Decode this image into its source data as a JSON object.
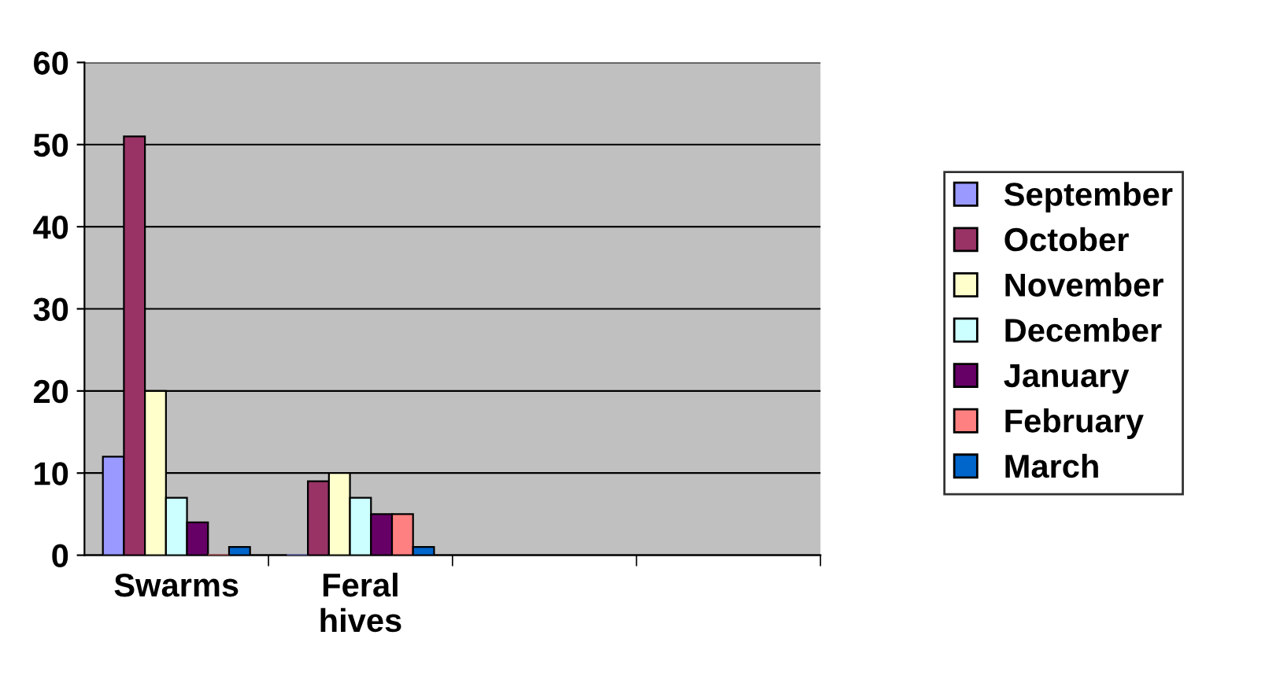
{
  "chart_data": {
    "type": "bar",
    "categories": [
      "Swarms",
      "Feral\nhives",
      null,
      null
    ],
    "series": [
      {
        "name": "September",
        "color": "#9999ff",
        "values": [
          12,
          0,
          null,
          null
        ]
      },
      {
        "name": "October",
        "color": "#993366",
        "values": [
          51,
          9,
          null,
          null
        ]
      },
      {
        "name": "November",
        "color": "#ffffcc",
        "values": [
          20,
          10,
          null,
          null
        ]
      },
      {
        "name": "December",
        "color": "#ccffff",
        "values": [
          7,
          7,
          null,
          null
        ]
      },
      {
        "name": "January",
        "color": "#660066",
        "values": [
          4,
          5,
          null,
          null
        ]
      },
      {
        "name": "February",
        "color": "#ff8080",
        "values": [
          0,
          5,
          null,
          null
        ]
      },
      {
        "name": "March",
        "color": "#0066cc",
        "values": [
          1,
          1,
          null,
          null
        ]
      }
    ],
    "ylim": [
      0,
      60
    ],
    "yticks": [
      0,
      10,
      20,
      30,
      40,
      50,
      60
    ],
    "grid": "y",
    "legend": "right"
  }
}
